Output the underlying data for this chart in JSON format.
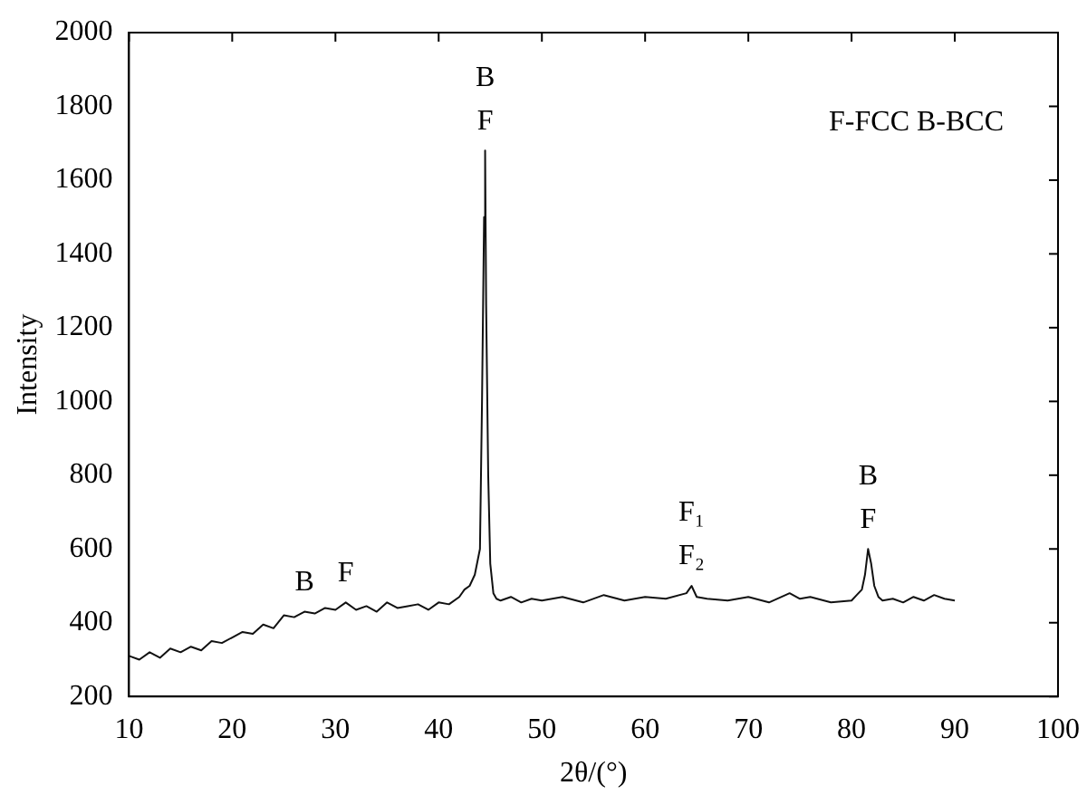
{
  "chart_data": {
    "type": "line",
    "xlabel": "2θ/(°)",
    "ylabel": "Intensity",
    "x": [
      10,
      11,
      12,
      13,
      14,
      15,
      16,
      17,
      18,
      19,
      20,
      21,
      22,
      23,
      24,
      25,
      26,
      27,
      28,
      29,
      30,
      31,
      32,
      33,
      34,
      35,
      36,
      37,
      38,
      39,
      40,
      41,
      42,
      42.5,
      43,
      43.5,
      44,
      44.2,
      44.4,
      44.5,
      44.6,
      44.8,
      45,
      45.3,
      45.6,
      46,
      47,
      48,
      49,
      50,
      52,
      54,
      56,
      58,
      60,
      62,
      64,
      64.5,
      65,
      66,
      68,
      70,
      72,
      74,
      75,
      76,
      78,
      80,
      80.5,
      81,
      81.3,
      81.6,
      81.9,
      82.2,
      82.6,
      83,
      84,
      85,
      86,
      87,
      88,
      89,
      90
    ],
    "series": [
      {
        "color": "#111111",
        "values": [
          310,
          300,
          320,
          305,
          330,
          320,
          335,
          325,
          350,
          345,
          360,
          375,
          370,
          395,
          385,
          420,
          415,
          430,
          425,
          440,
          435,
          455,
          435,
          445,
          430,
          455,
          440,
          445,
          450,
          435,
          455,
          450,
          470,
          490,
          500,
          530,
          600,
          1000,
          1500,
          1680,
          1260,
          800,
          560,
          480,
          465,
          460,
          470,
          455,
          465,
          460,
          470,
          455,
          475,
          460,
          470,
          465,
          480,
          500,
          470,
          465,
          460,
          470,
          455,
          480,
          465,
          470,
          455,
          460,
          475,
          490,
          530,
          600,
          560,
          500,
          470,
          460,
          465,
          455,
          470,
          460,
          475,
          465,
          460
        ]
      }
    ],
    "xlim": [
      10,
      100
    ],
    "ylim": [
      200,
      2000
    ],
    "xticks": [
      10,
      20,
      30,
      40,
      50,
      60,
      70,
      80,
      90,
      100
    ],
    "yticks": [
      200,
      400,
      600,
      800,
      1000,
      1200,
      1400,
      1600,
      1800,
      2000
    ],
    "grid": false,
    "legend": false,
    "marker": "none",
    "line_style": "solid",
    "annotations": [
      "F-FCC B-BCC",
      {
        "text": "B",
        "x": 27,
        "y": 430
      },
      {
        "text": "F",
        "x": 31,
        "y": 455
      },
      {
        "text": "B",
        "x": 44.5,
        "y": 1680
      },
      {
        "text": "F",
        "x": 44.5,
        "y": 1680
      },
      {
        "text": "F₁",
        "x": 64.5,
        "y": 500
      },
      {
        "text": "F₂",
        "x": 64.5,
        "y": 500
      },
      {
        "text": "B",
        "x": 81.6,
        "y": 600
      },
      {
        "text": "F",
        "x": 81.6,
        "y": 600
      }
    ]
  }
}
